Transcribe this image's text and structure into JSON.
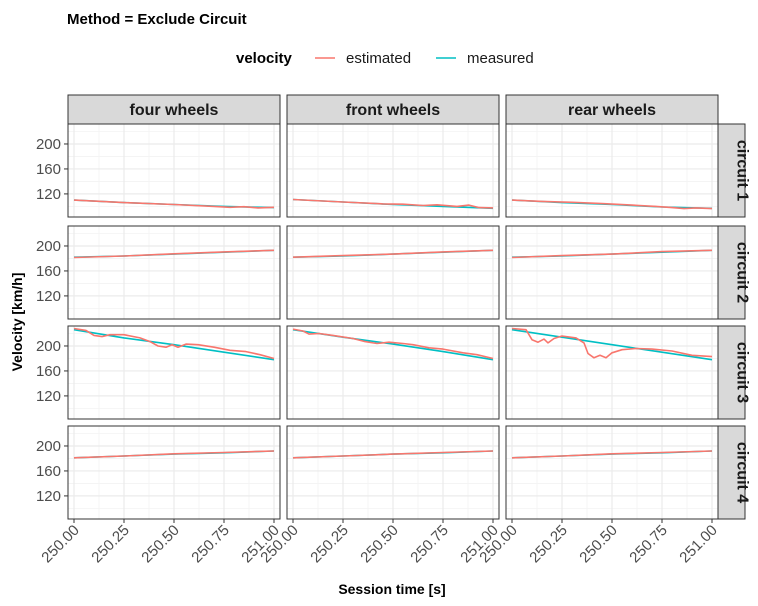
{
  "chart_data": {
    "type": "line",
    "title": "Method = Exclude Circuit",
    "xlabel": "Session time [s]",
    "ylabel": "Velocity [km/h]",
    "xlim": [
      249.97,
      251.03
    ],
    "ylim": [
      83,
      232
    ],
    "x_ticks": [
      250.0,
      250.25,
      250.5,
      250.75,
      251.0
    ],
    "x_tick_labels": [
      "250.00",
      "250.25",
      "250.50",
      "250.75",
      "251.00"
    ],
    "y_ticks": [
      120,
      160,
      200
    ],
    "y_tick_labels": [
      "120",
      "160",
      "200"
    ],
    "grid": true,
    "legend": {
      "title": "velocity",
      "position": "top",
      "entries": [
        "estimated",
        "measured"
      ]
    },
    "colors": {
      "estimated": "#F8766D",
      "measured": "#00BFC4",
      "strip": "#D9D9D9",
      "grid": "#EBEBEB"
    },
    "facet_columns": [
      "four wheels",
      "front wheels",
      "rear wheels"
    ],
    "facet_rows": [
      "circuit 1",
      "circuit 2",
      "circuit 3",
      "circuit 4"
    ],
    "panels": [
      {
        "col": 0,
        "row": 0,
        "measured": [
          [
            250.0,
            110
          ],
          [
            250.25,
            106
          ],
          [
            250.5,
            103
          ],
          [
            250.75,
            100
          ],
          [
            251.0,
            98
          ]
        ],
        "estimated": [
          [
            250.0,
            110
          ],
          [
            250.25,
            106
          ],
          [
            250.5,
            103
          ],
          [
            250.7,
            100
          ],
          [
            250.78,
            98.5
          ],
          [
            250.85,
            99.5
          ],
          [
            250.92,
            97.5
          ],
          [
            251.0,
            98.5
          ]
        ]
      },
      {
        "col": 1,
        "row": 0,
        "measured": [
          [
            250.0,
            111
          ],
          [
            250.25,
            107
          ],
          [
            250.5,
            103
          ],
          [
            250.75,
            100
          ],
          [
            251.0,
            97
          ]
        ],
        "estimated": [
          [
            250.0,
            111
          ],
          [
            250.25,
            107
          ],
          [
            250.45,
            104
          ],
          [
            250.55,
            103.5
          ],
          [
            250.65,
            101.5
          ],
          [
            250.72,
            102.5
          ],
          [
            250.82,
            100
          ],
          [
            250.88,
            102
          ],
          [
            250.93,
            98
          ],
          [
            251.0,
            97.5
          ]
        ]
      },
      {
        "col": 2,
        "row": 0,
        "measured": [
          [
            250.0,
            110
          ],
          [
            250.25,
            106
          ],
          [
            250.5,
            103
          ],
          [
            250.75,
            99
          ],
          [
            251.0,
            97
          ]
        ],
        "estimated": [
          [
            250.0,
            110
          ],
          [
            250.15,
            108
          ],
          [
            250.3,
            106.5
          ],
          [
            250.45,
            104.5
          ],
          [
            250.6,
            102
          ],
          [
            250.72,
            100
          ],
          [
            250.8,
            98
          ],
          [
            250.86,
            96.5
          ],
          [
            250.92,
            97.5
          ],
          [
            251.0,
            96.5
          ]
        ]
      },
      {
        "col": 0,
        "row": 1,
        "measured": [
          [
            250.0,
            182
          ],
          [
            250.25,
            184
          ],
          [
            250.5,
            187
          ],
          [
            250.75,
            190
          ],
          [
            251.0,
            193
          ]
        ],
        "estimated": [
          [
            250.0,
            181.5
          ],
          [
            250.25,
            184
          ],
          [
            250.5,
            187.5
          ],
          [
            250.75,
            190.5
          ],
          [
            251.0,
            193
          ]
        ]
      },
      {
        "col": 1,
        "row": 1,
        "measured": [
          [
            250.0,
            182
          ],
          [
            250.25,
            184
          ],
          [
            250.5,
            187
          ],
          [
            250.75,
            190
          ],
          [
            251.0,
            193
          ]
        ],
        "estimated": [
          [
            250.0,
            182
          ],
          [
            250.25,
            184.5
          ],
          [
            250.5,
            187
          ],
          [
            250.75,
            190.5
          ],
          [
            251.0,
            193
          ]
        ]
      },
      {
        "col": 2,
        "row": 1,
        "measured": [
          [
            250.0,
            182
          ],
          [
            250.25,
            184
          ],
          [
            250.5,
            187
          ],
          [
            250.75,
            190
          ],
          [
            251.0,
            193
          ]
        ],
        "estimated": [
          [
            250.0,
            181.5
          ],
          [
            250.25,
            184.5
          ],
          [
            250.5,
            187
          ],
          [
            250.75,
            191
          ],
          [
            251.0,
            193
          ]
        ]
      },
      {
        "col": 0,
        "row": 2,
        "measured": [
          [
            250.0,
            226
          ],
          [
            250.25,
            213
          ],
          [
            250.5,
            202
          ],
          [
            250.75,
            190
          ],
          [
            251.0,
            178
          ]
        ],
        "estimated": [
          [
            250.0,
            228
          ],
          [
            250.06,
            225
          ],
          [
            250.1,
            217
          ],
          [
            250.14,
            215
          ],
          [
            250.18,
            218
          ],
          [
            250.25,
            218
          ],
          [
            250.33,
            213
          ],
          [
            250.38,
            207
          ],
          [
            250.42,
            200
          ],
          [
            250.46,
            198
          ],
          [
            250.49,
            202
          ],
          [
            250.52,
            198
          ],
          [
            250.56,
            203
          ],
          [
            250.62,
            202
          ],
          [
            250.7,
            198
          ],
          [
            250.78,
            193
          ],
          [
            250.86,
            191
          ],
          [
            250.93,
            186
          ],
          [
            251.0,
            180
          ]
        ]
      },
      {
        "col": 1,
        "row": 2,
        "measured": [
          [
            250.0,
            226
          ],
          [
            250.25,
            214
          ],
          [
            250.5,
            203
          ],
          [
            250.75,
            191
          ],
          [
            251.0,
            178
          ]
        ],
        "estimated": [
          [
            250.0,
            227
          ],
          [
            250.05,
            224
          ],
          [
            250.08,
            219
          ],
          [
            250.13,
            220
          ],
          [
            250.2,
            217
          ],
          [
            250.3,
            212
          ],
          [
            250.36,
            207
          ],
          [
            250.42,
            204
          ],
          [
            250.48,
            206
          ],
          [
            250.55,
            204
          ],
          [
            250.6,
            202
          ],
          [
            250.68,
            197
          ],
          [
            250.75,
            195
          ],
          [
            250.85,
            189
          ],
          [
            250.92,
            186
          ],
          [
            251.0,
            180
          ]
        ]
      },
      {
        "col": 2,
        "row": 2,
        "measured": [
          [
            250.0,
            226
          ],
          [
            250.25,
            214
          ],
          [
            250.5,
            202
          ],
          [
            250.75,
            190
          ],
          [
            251.0,
            178
          ]
        ],
        "estimated": [
          [
            250.0,
            228
          ],
          [
            250.07,
            226
          ],
          [
            250.1,
            210
          ],
          [
            250.13,
            206
          ],
          [
            250.16,
            211
          ],
          [
            250.18,
            205
          ],
          [
            250.21,
            212
          ],
          [
            250.25,
            216
          ],
          [
            250.32,
            213
          ],
          [
            250.36,
            205
          ],
          [
            250.38,
            188
          ],
          [
            250.41,
            181
          ],
          [
            250.44,
            185
          ],
          [
            250.47,
            181
          ],
          [
            250.5,
            189
          ],
          [
            250.55,
            194
          ],
          [
            250.62,
            196
          ],
          [
            250.7,
            195
          ],
          [
            250.8,
            192
          ],
          [
            250.9,
            185
          ],
          [
            251.0,
            183
          ]
        ]
      },
      {
        "col": 0,
        "row": 3,
        "measured": [
          [
            250.0,
            181
          ],
          [
            250.25,
            184
          ],
          [
            250.5,
            187
          ],
          [
            250.75,
            189
          ],
          [
            251.0,
            192
          ]
        ],
        "estimated": [
          [
            250.0,
            181
          ],
          [
            250.25,
            184
          ],
          [
            250.5,
            187.5
          ],
          [
            250.75,
            189.5
          ],
          [
            251.0,
            192
          ]
        ]
      },
      {
        "col": 1,
        "row": 3,
        "measured": [
          [
            250.0,
            181
          ],
          [
            250.25,
            184
          ],
          [
            250.5,
            187
          ],
          [
            250.75,
            189
          ],
          [
            251.0,
            192
          ]
        ],
        "estimated": [
          [
            250.0,
            181
          ],
          [
            250.25,
            184
          ],
          [
            250.5,
            187
          ],
          [
            250.75,
            189.5
          ],
          [
            251.0,
            192
          ]
        ]
      },
      {
        "col": 2,
        "row": 3,
        "measured": [
          [
            250.0,
            181
          ],
          [
            250.25,
            184
          ],
          [
            250.5,
            187
          ],
          [
            250.75,
            189
          ],
          [
            251.0,
            192
          ]
        ],
        "estimated": [
          [
            250.0,
            181
          ],
          [
            250.25,
            184
          ],
          [
            250.5,
            187.5
          ],
          [
            250.75,
            189.5
          ],
          [
            251.0,
            192
          ]
        ]
      }
    ]
  }
}
